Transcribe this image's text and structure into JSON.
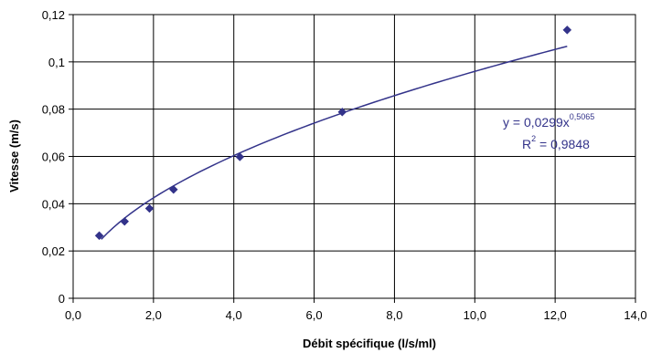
{
  "chart_data": {
    "type": "scatter",
    "xlabel": "Débit spécifique  (l/s/ml)",
    "ylabel": "Vitesse  (m/s)",
    "xlim": [
      0,
      14
    ],
    "ylim": [
      0,
      0.12
    ],
    "x_ticks": [
      0,
      2,
      4,
      6,
      8,
      10,
      12,
      14
    ],
    "y_ticks": [
      0,
      0.02,
      0.04,
      0.06,
      0.08,
      0.1,
      0.12
    ],
    "x_tick_labels": [
      "0,0",
      "2,0",
      "4,0",
      "6,0",
      "8,0",
      "10,0",
      "12,0",
      "14,0"
    ],
    "y_tick_labels": [
      "0",
      "0,02",
      "0,04",
      "0,06",
      "0,08",
      "0,1",
      "0,12"
    ],
    "grid": true,
    "series": [
      {
        "marker": "diamond",
        "color": "#33338a",
        "points": [
          {
            "x": 0.65,
            "y": 0.0265
          },
          {
            "x": 1.28,
            "y": 0.0325
          },
          {
            "x": 1.9,
            "y": 0.038
          },
          {
            "x": 2.5,
            "y": 0.046
          },
          {
            "x": 4.15,
            "y": 0.0598
          },
          {
            "x": 6.7,
            "y": 0.0788
          },
          {
            "x": 12.3,
            "y": 0.1135
          }
        ]
      }
    ],
    "trendline": {
      "type": "power",
      "a": 0.0299,
      "b": 0.5065,
      "x_range": [
        0.7,
        12.3
      ],
      "color": "#33338a"
    },
    "annotations": {
      "equation_prefix": "y = 0,0299x",
      "equation_exponent": "0,5065",
      "r2_prefix": "R",
      "r2_exponent": "2",
      "r2_value": " = 0,9848"
    }
  }
}
